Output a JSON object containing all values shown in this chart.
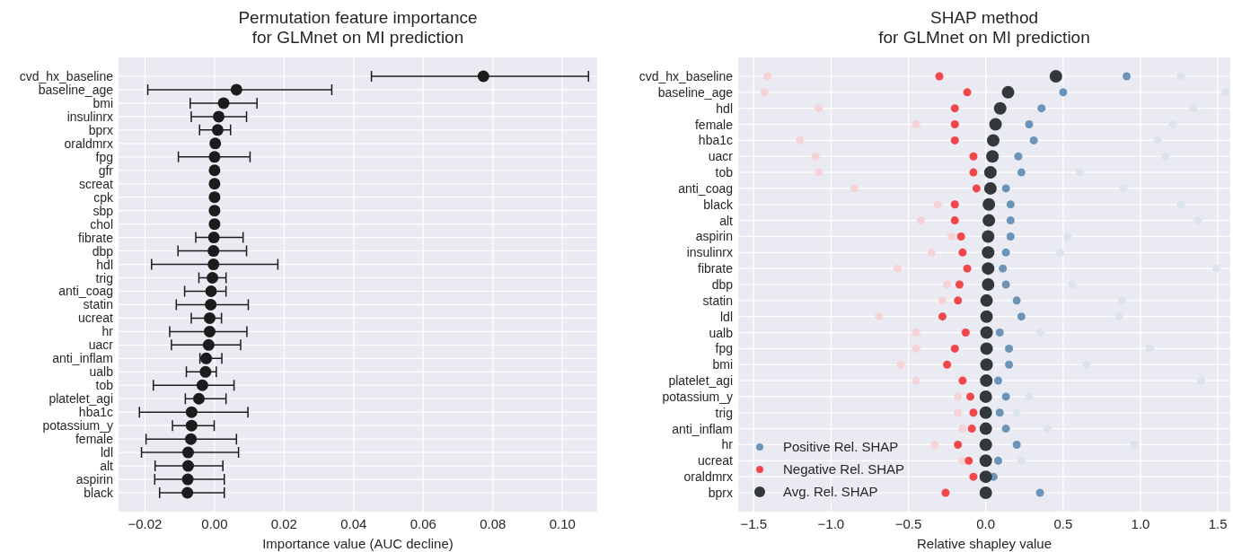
{
  "chart_data": [
    {
      "type": "scatter",
      "orientation": "horizontal",
      "title": "Permutation feature importance\nfor GLMnet on MI prediction",
      "xlabel": "Importance value (AUC decline)",
      "grid": true,
      "marker": "circle",
      "color": "#1c1c1c",
      "categories": [
        "cvd_hx_baseline",
        "baseline_age",
        "bmi",
        "insulinrx",
        "bprx",
        "oraldmrx",
        "fpg",
        "gfr",
        "screat",
        "cpk",
        "sbp",
        "chol",
        "fibrate",
        "dbp",
        "hdl",
        "trig",
        "anti_coag",
        "statin",
        "ucreat",
        "hr",
        "uacr",
        "anti_inflam",
        "ualb",
        "tob",
        "platelet_agi",
        "hba1c",
        "potassium_y",
        "female",
        "ldl",
        "alt",
        "aspirin",
        "black"
      ],
      "values": [
        0.0773,
        0.0063,
        0.0026,
        0.0012,
        0.0009,
        0.0002,
        0.0,
        0.0,
        0.0,
        0.0,
        0.0,
        0.0,
        -0.0002,
        -0.0003,
        -0.0003,
        -0.0006,
        -0.001,
        -0.0011,
        -0.0014,
        -0.0014,
        -0.0017,
        -0.0024,
        -0.0026,
        -0.0035,
        -0.0045,
        -0.0066,
        -0.0066,
        -0.0068,
        -0.0076,
        -0.0076,
        -0.0077,
        -0.0078
      ],
      "errors": [
        [
          0.0451,
          0.1075
        ],
        [
          -0.0192,
          0.0337
        ],
        [
          -0.007,
          0.0122
        ],
        [
          -0.0067,
          0.0092
        ],
        [
          -0.0043,
          0.0046
        ],
        null,
        [
          -0.0104,
          0.0102
        ],
        null,
        null,
        null,
        null,
        null,
        [
          -0.0054,
          0.0082
        ],
        [
          -0.0105,
          0.0092
        ],
        [
          -0.0181,
          0.0182
        ],
        [
          -0.0045,
          0.0033
        ],
        [
          -0.0086,
          0.0033
        ],
        [
          -0.011,
          0.0097
        ],
        [
          -0.0067,
          0.002
        ],
        [
          -0.0129,
          0.0093
        ],
        [
          -0.0124,
          0.0075
        ],
        [
          -0.0042,
          0.0021
        ],
        [
          -0.0081,
          0.0005
        ],
        [
          -0.0176,
          0.0056
        ],
        [
          -0.0084,
          0.0033
        ],
        [
          -0.0216,
          0.0096
        ],
        [
          -0.0121,
          -0.0001
        ],
        [
          -0.0197,
          0.0063
        ],
        [
          -0.021,
          0.0069
        ],
        [
          -0.0171,
          0.0024
        ],
        [
          -0.0172,
          0.0028
        ],
        [
          -0.0158,
          0.0028
        ]
      ],
      "xlim": [
        -0.0276,
        0.11
      ],
      "xticks": [
        {
          "value": -0.02,
          "label": "−0.02"
        },
        {
          "value": 0,
          "label": "0.00"
        },
        {
          "value": 0.02,
          "label": "0.02"
        },
        {
          "value": 0.04,
          "label": "0.04"
        },
        {
          "value": 0.06,
          "label": "0.06"
        },
        {
          "value": 0.08,
          "label": "0.08"
        },
        {
          "value": 0.1,
          "label": "0.10"
        }
      ]
    },
    {
      "type": "scatter",
      "orientation": "horizontal",
      "title": "SHAP method\nfor GLMnet on MI prediction",
      "xlabel": "Relative shapley value",
      "grid": true,
      "marker": "circle",
      "legend": "bottom left",
      "categories": [
        "cvd_hx_baseline",
        "baseline_age",
        "hdl",
        "female",
        "hba1c",
        "uacr",
        "tob",
        "anti_coag",
        "black",
        "alt",
        "aspirin",
        "insulinrx",
        "fibrate",
        "dbp",
        "statin",
        "ldl",
        "ualb",
        "fpg",
        "bmi",
        "platelet_agi",
        "potassium_y",
        "trig",
        "anti_inflam",
        "hr",
        "ucreat",
        "oraldmrx",
        "bprx"
      ],
      "series": [
        {
          "color": "#dde3ea",
          "values": [
            1.26,
            1.55,
            1.34,
            1.21,
            1.11,
            1.16,
            0.61,
            0.89,
            1.26,
            1.37,
            0.53,
            0.48,
            1.49,
            0.56,
            0.88,
            0.86,
            0.35,
            1.06,
            0.65,
            1.39,
            0.28,
            0.2,
            0.4,
            0.96,
            0.23,
            null,
            null
          ]
        },
        {
          "color": "#f5d3d6",
          "values": [
            -1.41,
            -1.43,
            -1.08,
            -0.45,
            -1.2,
            -1.1,
            -1.08,
            -0.85,
            -0.31,
            -0.42,
            -0.22,
            -0.35,
            -0.57,
            -0.25,
            -0.28,
            -0.69,
            -0.45,
            -0.45,
            -0.55,
            -0.45,
            -0.18,
            -0.18,
            -0.15,
            -0.33,
            -0.15,
            null,
            null
          ]
        },
        {
          "name": "Positive Rel. SHAP",
          "color": "#6b94b8",
          "values": [
            0.91,
            0.5,
            0.36,
            0.28,
            0.31,
            0.21,
            0.23,
            0.13,
            0.16,
            0.16,
            0.16,
            0.13,
            0.11,
            0.13,
            0.2,
            0.23,
            0.09,
            0.15,
            0.15,
            0.08,
            0.13,
            0.09,
            0.13,
            0.2,
            0.08,
            0.05,
            0.35
          ]
        },
        {
          "name": "Negative Rel. SHAP",
          "color": "#f0474b",
          "values": [
            -0.3,
            -0.12,
            -0.2,
            -0.2,
            -0.2,
            -0.08,
            -0.08,
            -0.06,
            -0.2,
            -0.2,
            -0.16,
            -0.15,
            -0.12,
            -0.17,
            -0.18,
            -0.28,
            -0.13,
            -0.2,
            -0.25,
            -0.15,
            -0.1,
            -0.08,
            -0.09,
            -0.18,
            -0.11,
            -0.08,
            -0.26
          ]
        },
        {
          "name": "Avg. Rel. SHAP",
          "color": "#33383d",
          "values": [
            0.453,
            0.144,
            0.093,
            0.063,
            0.048,
            0.043,
            0.03,
            0.03,
            0.02,
            0.02,
            0.015,
            0.015,
            0.015,
            0.015,
            0.005,
            0.005,
            0.005,
            0.005,
            0.005,
            0.003,
            0,
            0,
            0,
            0,
            0,
            0,
            0
          ]
        }
      ],
      "xlim": [
        -1.6,
        1.58
      ],
      "xticks": [
        {
          "value": -1.5,
          "label": "−1.5"
        },
        {
          "value": -1,
          "label": "−1.0"
        },
        {
          "value": -0.5,
          "label": "−0.5"
        },
        {
          "value": 0,
          "label": "0.0"
        },
        {
          "value": 0.5,
          "label": "0.5"
        },
        {
          "value": 1,
          "label": "1.0"
        },
        {
          "value": 1.5,
          "label": "1.5"
        }
      ]
    }
  ]
}
